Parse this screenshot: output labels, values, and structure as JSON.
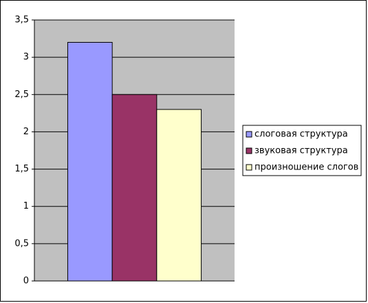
{
  "chart_data": {
    "type": "bar",
    "categories": [
      null
    ],
    "series": [
      {
        "name": "слоговая структура",
        "color": "#9999ff",
        "values": [
          3.2
        ]
      },
      {
        "name": "звуковая структура",
        "color": "#993366",
        "values": [
          2.5
        ]
      },
      {
        "name": "произношение слогов",
        "color": "#ffffcc",
        "values": [
          2.3
        ]
      }
    ],
    "ylim": [
      0,
      3.5
    ],
    "yticks": [
      0,
      {
        "value": 0.5,
        "label": "0,5"
      },
      1,
      {
        "value": 1.5,
        "label": "1,5"
      },
      2,
      {
        "value": 2.5,
        "label": "2,5"
      },
      3,
      {
        "value": 3.5,
        "label": "3,5"
      }
    ],
    "grid": true,
    "legend": "right",
    "plot_background": "#c0c0c0"
  }
}
